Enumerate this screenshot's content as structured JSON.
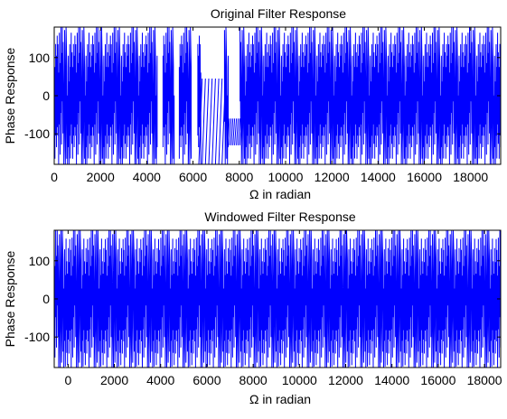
{
  "colors": {
    "line": "#0000ff",
    "axes": "#000000",
    "background": "#ffffff"
  },
  "chart_data": [
    {
      "type": "line",
      "title": "Original Filter Response",
      "xlabel": "Ω in radian",
      "ylabel": "Phase Response",
      "xlim": [
        0,
        19300
      ],
      "ylim": [
        -180,
        180
      ],
      "xticks": [
        0,
        2000,
        4000,
        6000,
        8000,
        10000,
        12000,
        14000,
        16000,
        18000
      ],
      "xtick_labels": [
        "0",
        "2000",
        "4000",
        "6000",
        "8000",
        "10000",
        "12000",
        "14000",
        "16000",
        "18000"
      ],
      "yticks": [
        -100,
        0,
        100
      ],
      "ytick_labels": [
        "-100",
        "0",
        "100"
      ],
      "grid": false,
      "series": [
        {
          "color": "#0000ff",
          "pattern": "wrapped-phase sawtooth",
          "dense_wrap_period": 64,
          "envelope_period": 768,
          "x_range": [
            0,
            19300
          ],
          "gaps": [
            {
              "x_start": 4450,
              "x_end": 4700
            },
            {
              "x_start": 5200,
              "x_end": 5400
            },
            {
              "x_start": 5950,
              "x_end": 6200
            },
            {
              "x_start": 6350,
              "x_end": 7350
            },
            {
              "x_start": 7550,
              "x_end": 8000
            }
          ],
          "sparse_segments": [
            {
              "x_start": 6250,
              "x_end": 7400,
              "y_start": -180,
              "y_end": 45
            },
            {
              "x_start": 7500,
              "x_end": 8100,
              "y_start": -130,
              "y_end": -60
            }
          ]
        }
      ]
    },
    {
      "type": "line",
      "title": "Windowed Filter Response",
      "xlabel": "Ω  in radian",
      "ylabel": "Phase Response",
      "xlim": [
        -600,
        18700
      ],
      "ylim": [
        -180,
        180
      ],
      "xticks": [
        0,
        2000,
        4000,
        6000,
        8000,
        10000,
        12000,
        14000,
        16000,
        18000
      ],
      "xtick_labels": [
        "0",
        "2000",
        "4000",
        "6000",
        "8000",
        "10000",
        "12000",
        "14000",
        "16000",
        "18000"
      ],
      "yticks": [
        -100,
        0,
        100
      ],
      "ytick_labels": [
        "-100",
        "0",
        "100"
      ],
      "grid": false,
      "series": [
        {
          "color": "#0000ff",
          "pattern": "wrapped-phase sawtooth",
          "dense_wrap_period": 64,
          "envelope_period": 768,
          "x_range": [
            -600,
            18700
          ]
        }
      ]
    }
  ]
}
